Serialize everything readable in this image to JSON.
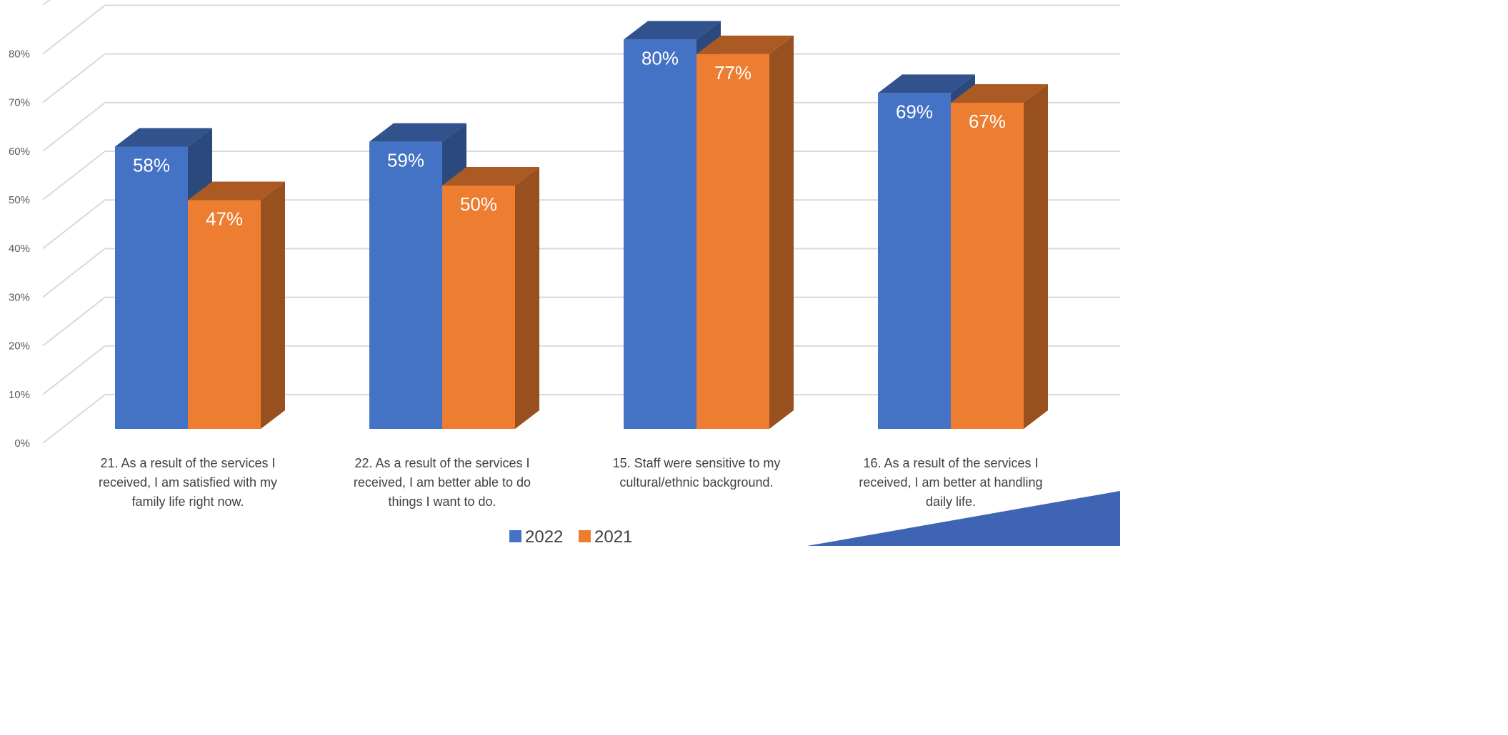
{
  "chart_data": {
    "type": "bar",
    "title": "",
    "xlabel": "",
    "ylabel": "",
    "ylim": [
      0,
      0.8
    ],
    "y_ticks": [
      "0%",
      "10%",
      "20%",
      "30%",
      "40%",
      "50%",
      "60%",
      "70%",
      "80%"
    ],
    "grid": true,
    "legend_position": "bottom",
    "categories": [
      "21. As a result of the services I received, I am satisfied with my family life right now.",
      "22. As a result of the services I received, I am better able to do things I want to do.",
      "15. Staff were sensitive to my cultural/ethnic background.",
      "16. As a result of the services I received, I am better at handling daily life."
    ],
    "category_lines": [
      [
        "21. As a result of the services I",
        "received, I am satisfied with my",
        "family life right now."
      ],
      [
        "22. As a result of the services I",
        "received, I am better able to do",
        "things I want to do."
      ],
      [
        "15. Staff were sensitive to my",
        "cultural/ethnic background."
      ],
      [
        "16. As a result of the services I",
        "received, I am better at handling",
        "daily life."
      ]
    ],
    "series": [
      {
        "name": "2022",
        "values": [
          0.58,
          0.59,
          0.8,
          0.69
        ],
        "labels": [
          "58%",
          "59%",
          "80%",
          "69%"
        ],
        "color": "#4472C4"
      },
      {
        "name": "2021",
        "values": [
          0.47,
          0.5,
          0.77,
          0.67
        ],
        "labels": [
          "47%",
          "50%",
          "77%",
          "67%"
        ],
        "color": "#ED7D31"
      }
    ]
  },
  "colors": {
    "series_2022": "#4472C4",
    "series_2021": "#ED7D31",
    "accent_shape": "#3F64B4"
  }
}
